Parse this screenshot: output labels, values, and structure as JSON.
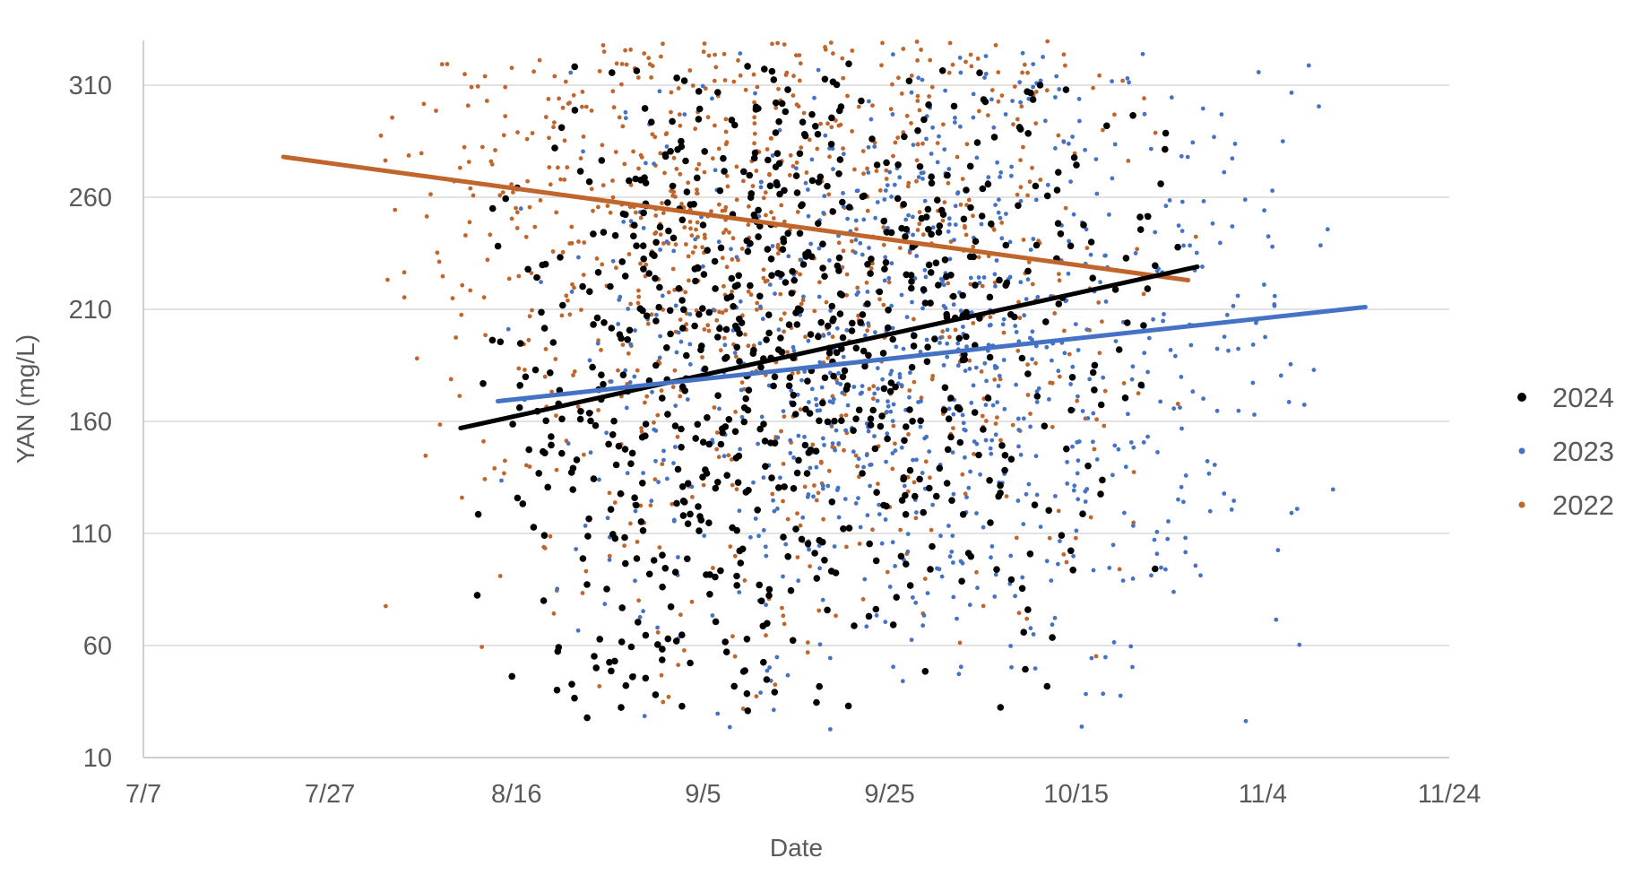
{
  "chart_data": {
    "type": "scatter",
    "title": "",
    "xlabel": "Date",
    "ylabel": "YAN (mg/L)",
    "x_axis": {
      "min": "07-07",
      "max": "11-24",
      "ticks": [
        "7/7",
        "7/27",
        "8/16",
        "9/5",
        "9/25",
        "10/15",
        "11/4",
        "11/24"
      ]
    },
    "y_axis": {
      "min": 10,
      "max": 330,
      "ticks": [
        10,
        60,
        110,
        160,
        210,
        260,
        310
      ]
    },
    "grid": true,
    "legend_position": "right",
    "series": [
      {
        "name": "2024",
        "color": "#000000",
        "x_range": [
          "08-10",
          "10-28"
        ],
        "x_peak": "09-08",
        "y_range": [
          25,
          320
        ],
        "trendline": {
          "start": {
            "x": "08-10",
            "y": 157
          },
          "end": {
            "x": "10-28",
            "y": 229
          }
        }
      },
      {
        "name": "2023",
        "color": "#4472C4",
        "x_range": [
          "08-14",
          "11-15"
        ],
        "x_peak": "10-01",
        "y_range": [
          20,
          325
        ],
        "trendline": {
          "start": {
            "x": "08-14",
            "y": 169
          },
          "end": {
            "x": "11-15",
            "y": 211
          }
        }
      },
      {
        "name": "2022",
        "color": "#C0652B",
        "x_range": [
          "07-31",
          "10-29"
        ],
        "x_peak": "09-06",
        "y_range": [
          30,
          330
        ],
        "trendline": {
          "start": {
            "x": "07-22",
            "y": 278
          },
          "end": {
            "x": "10-27",
            "y": 223
          }
        }
      }
    ]
  }
}
